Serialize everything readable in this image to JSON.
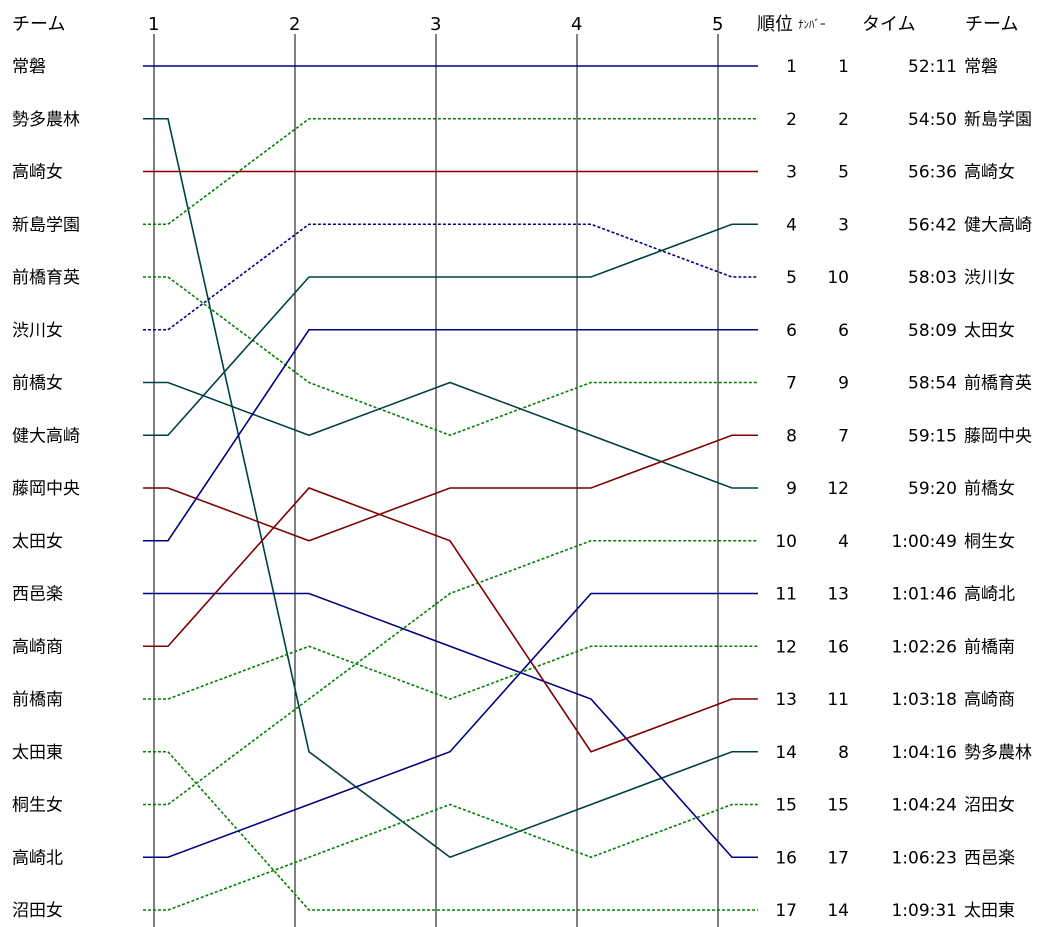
{
  "chart_data": {
    "type": "line",
    "x": [
      "1",
      "2",
      "3",
      "4",
      "5"
    ],
    "headers": {
      "team_left": "チーム",
      "rank": "順位",
      "number": "ﾅﾝﾊﾞｰ",
      "time": "タイム",
      "team_right": "チーム"
    },
    "colors": {
      "blue": "#000080",
      "green": "#008000",
      "teal": "#004040",
      "red": "#800000"
    },
    "series": [
      {
        "name": "常磐",
        "number": "1",
        "time": "52:11",
        "final_rank": "1",
        "color": "blue",
        "dashed": false,
        "ranks": [
          1,
          1,
          1,
          1,
          1
        ]
      },
      {
        "name": "勢多農林",
        "number": "8",
        "time": "1:04:16",
        "final_rank": "14",
        "color": "teal",
        "dashed": false,
        "ranks": [
          2,
          14,
          16,
          15,
          14
        ]
      },
      {
        "name": "高崎女",
        "number": "5",
        "time": "56:36",
        "final_rank": "3",
        "color": "red",
        "dashed": false,
        "ranks": [
          3,
          3,
          3,
          3,
          3
        ]
      },
      {
        "name": "新島学園",
        "number": "2",
        "time": "54:50",
        "final_rank": "2",
        "color": "green",
        "dashed": true,
        "ranks": [
          4,
          2,
          2,
          2,
          2
        ]
      },
      {
        "name": "前橋育英",
        "number": "9",
        "time": "58:54",
        "final_rank": "7",
        "color": "green",
        "dashed": true,
        "ranks": [
          5,
          7,
          8,
          7,
          7
        ]
      },
      {
        "name": "渋川女",
        "number": "10",
        "time": "58:03",
        "final_rank": "5",
        "color": "blue",
        "dashed": true,
        "ranks": [
          6,
          4,
          4,
          4,
          5
        ]
      },
      {
        "name": "前橋女",
        "number": "12",
        "time": "59:20",
        "final_rank": "9",
        "color": "teal",
        "dashed": false,
        "ranks": [
          7,
          8,
          7,
          8,
          9
        ]
      },
      {
        "name": "健大高崎",
        "number": "3",
        "time": "56:42",
        "final_rank": "4",
        "color": "teal",
        "dashed": false,
        "ranks": [
          8,
          5,
          5,
          5,
          4
        ]
      },
      {
        "name": "藤岡中央",
        "number": "7",
        "time": "59:15",
        "final_rank": "8",
        "color": "red",
        "dashed": false,
        "ranks": [
          9,
          10,
          9,
          9,
          8
        ]
      },
      {
        "name": "太田女",
        "number": "6",
        "time": "58:09",
        "final_rank": "6",
        "color": "blue",
        "dashed": false,
        "ranks": [
          10,
          6,
          6,
          6,
          6
        ]
      },
      {
        "name": "西邑楽",
        "number": "17",
        "time": "1:06:23",
        "final_rank": "16",
        "color": "blue",
        "dashed": false,
        "ranks": [
          11,
          11,
          12,
          13,
          16
        ]
      },
      {
        "name": "高崎商",
        "number": "11",
        "time": "1:03:18",
        "final_rank": "13",
        "color": "red",
        "dashed": false,
        "ranks": [
          12,
          9,
          10,
          14,
          13
        ]
      },
      {
        "name": "前橋南",
        "number": "16",
        "time": "1:02:26",
        "final_rank": "12",
        "color": "green",
        "dashed": true,
        "ranks": [
          13,
          12,
          13,
          12,
          12
        ]
      },
      {
        "name": "太田東",
        "number": "14",
        "time": "1:09:31",
        "final_rank": "17",
        "color": "green",
        "dashed": true,
        "ranks": [
          14,
          17,
          17,
          17,
          17
        ]
      },
      {
        "name": "桐生女",
        "number": "4",
        "time": "1:00:49",
        "final_rank": "10",
        "color": "green",
        "dashed": true,
        "ranks": [
          15,
          13,
          11,
          10,
          10
        ]
      },
      {
        "name": "高崎北",
        "number": "13",
        "time": "1:01:46",
        "final_rank": "11",
        "color": "blue",
        "dashed": false,
        "ranks": [
          16,
          15,
          14,
          11,
          11
        ]
      },
      {
        "name": "沼田女",
        "number": "15",
        "time": "1:04:24",
        "final_rank": "15",
        "color": "green",
        "dashed": true,
        "ranks": [
          17,
          16,
          15,
          16,
          15
        ]
      }
    ],
    "final_order": [
      "常磐",
      "新島学園",
      "高崎女",
      "健大高崎",
      "渋川女",
      "太田女",
      "前橋育英",
      "藤岡中央",
      "前橋女",
      "桐生女",
      "高崎北",
      "前橋南",
      "高崎商",
      "勢多農林",
      "沼田女",
      "西邑楽",
      "太田東"
    ],
    "ylim": [
      1,
      17
    ],
    "grid": true
  }
}
